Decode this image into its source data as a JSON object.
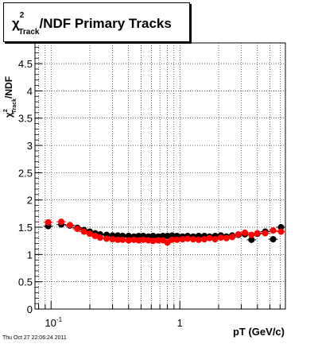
{
  "chart_data": {
    "type": "scatter",
    "title": {
      "chi": "χ",
      "sup": "2",
      "sub": "Track",
      "rest": "/NDF  Primary Tracks"
    },
    "xlabel": "pT (GeV/c)",
    "ylabel": {
      "chi": "χ",
      "sup": "2",
      "sub": "Track",
      "rest": "/NDF"
    },
    "xscale": "log",
    "xlim": [
      0.075,
      6.6
    ],
    "ylim": [
      0,
      4.88
    ],
    "xticks": [
      {
        "value": 0.1,
        "label": "10",
        "exp": "-1"
      },
      {
        "value": 1,
        "label": "1",
        "exp": ""
      }
    ],
    "yticks": [
      "0",
      "0.5",
      "1",
      "1.5",
      "2",
      "2.5",
      "3",
      "3.5",
      "4",
      "4.5"
    ],
    "ytick_values": [
      0,
      0.5,
      1,
      1.5,
      2,
      2.5,
      3,
      3.5,
      4,
      4.5
    ],
    "grid": true,
    "series": [
      {
        "color": "#000000",
        "x": [
          0.095,
          0.12,
          0.14,
          0.16,
          0.18,
          0.2,
          0.22,
          0.24,
          0.27,
          0.3,
          0.33,
          0.36,
          0.4,
          0.44,
          0.48,
          0.52,
          0.57,
          0.62,
          0.68,
          0.74,
          0.8,
          0.87,
          0.95,
          1.05,
          1.15,
          1.27,
          1.4,
          1.55,
          1.7,
          1.88,
          2.08,
          2.3,
          2.55,
          2.85,
          3.2,
          3.6,
          4.0,
          4.6,
          5.3,
          6.1
        ],
        "y": [
          1.52,
          1.55,
          1.53,
          1.49,
          1.45,
          1.42,
          1.39,
          1.37,
          1.36,
          1.35,
          1.35,
          1.34,
          1.34,
          1.33,
          1.34,
          1.34,
          1.33,
          1.34,
          1.33,
          1.34,
          1.34,
          1.35,
          1.34,
          1.33,
          1.34,
          1.33,
          1.34,
          1.34,
          1.33,
          1.34,
          1.35,
          1.33,
          1.35,
          1.36,
          1.37,
          1.27,
          1.38,
          1.42,
          1.28,
          1.5
        ]
      },
      {
        "color": "#ff0000",
        "x": [
          0.095,
          0.12,
          0.14,
          0.16,
          0.18,
          0.2,
          0.22,
          0.24,
          0.27,
          0.3,
          0.33,
          0.36,
          0.4,
          0.44,
          0.48,
          0.52,
          0.57,
          0.62,
          0.68,
          0.74,
          0.8,
          0.87,
          0.95,
          1.05,
          1.15,
          1.27,
          1.4,
          1.55,
          1.7,
          1.88,
          2.08,
          2.3,
          2.55,
          2.85,
          3.2,
          3.6,
          4.0,
          4.6,
          5.3,
          6.1
        ],
        "y": [
          1.59,
          1.6,
          1.54,
          1.47,
          1.42,
          1.38,
          1.34,
          1.31,
          1.29,
          1.28,
          1.27,
          1.27,
          1.26,
          1.27,
          1.26,
          1.27,
          1.26,
          1.25,
          1.26,
          1.26,
          1.22,
          1.27,
          1.27,
          1.28,
          1.29,
          1.28,
          1.27,
          1.28,
          1.3,
          1.28,
          1.31,
          1.3,
          1.32,
          1.37,
          1.4,
          1.36,
          1.39,
          1.39,
          1.44,
          1.42
        ]
      }
    ]
  },
  "footer": "Thu Oct 27 22:06:24 2011"
}
